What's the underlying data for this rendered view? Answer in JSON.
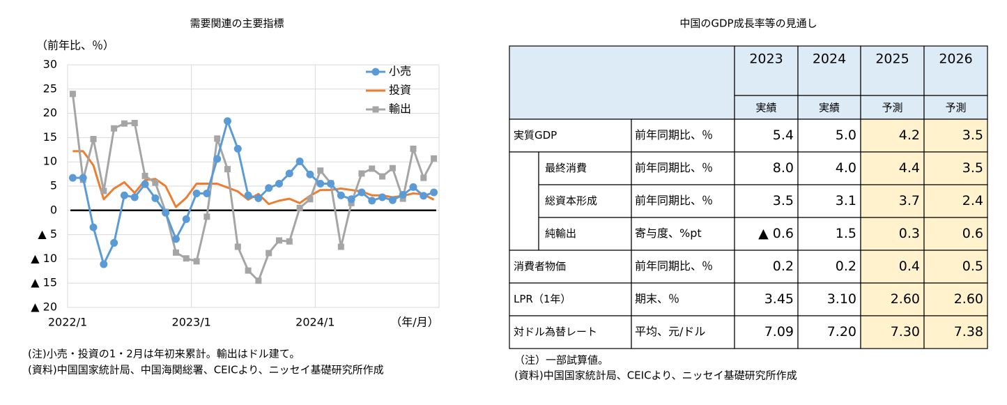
{
  "chart_data": {
    "type": "line",
    "title": "需要関連の主要指標",
    "y_label": "（前年比、％）",
    "x_label": "（年/月）",
    "categories": [
      "2022/1",
      null,
      null,
      null,
      null,
      null,
      null,
      null,
      null,
      null,
      null,
      null,
      "2023/1",
      null,
      null,
      null,
      null,
      null,
      null,
      null,
      null,
      null,
      null,
      null,
      "2024/1",
      null,
      null,
      null,
      null,
      null,
      null,
      null,
      null,
      null,
      null,
      null
    ],
    "series": [
      {
        "name": "小売",
        "color": "#5b9bd5",
        "marker": "circle",
        "values": [
          6.7,
          6.7,
          -3.5,
          -11.1,
          -6.7,
          3.1,
          2.7,
          5.4,
          2.5,
          -0.5,
          -5.9,
          -1.8,
          3.5,
          3.5,
          10.6,
          18.4,
          12.7,
          3.1,
          2.5,
          4.6,
          5.5,
          7.6,
          10.1,
          7.4,
          5.5,
          5.5,
          3.1,
          2.3,
          3.7,
          2.0,
          2.7,
          2.1,
          3.2,
          4.8,
          3.0,
          3.7
        ]
      },
      {
        "name": "投資",
        "color": "#ed7d31",
        "marker": "none",
        "values": [
          12.2,
          12.2,
          9.3,
          2.3,
          4.5,
          5.8,
          3.6,
          6.2,
          6.5,
          5.0,
          0.7,
          2.6,
          5.5,
          5.5,
          5.5,
          4.7,
          3.9,
          2.2,
          3.4,
          1.3,
          2.0,
          2.4,
          1.5,
          3.0,
          4.2,
          4.2,
          4.5,
          4.2,
          3.9,
          3.1,
          3.1,
          2.7,
          3.0,
          3.5,
          3.3,
          2.2
        ]
      },
      {
        "name": "輸出",
        "color": "#a5a5a5",
        "marker": "square",
        "values": [
          24.0,
          6.3,
          14.7,
          4.0,
          16.9,
          17.9,
          18.0,
          7.1,
          5.7,
          -0.3,
          -8.7,
          -9.9,
          -10.5,
          -1.3,
          14.8,
          8.5,
          -7.5,
          -12.4,
          -14.5,
          -8.8,
          -6.2,
          -6.4,
          0.5,
          2.3,
          8.2,
          5.6,
          -7.5,
          1.5,
          7.6,
          8.6,
          7.0,
          8.7,
          2.4,
          12.7,
          6.7,
          10.7
        ]
      }
    ],
    "ylim": [
      -20,
      30
    ],
    "yticks": [
      30,
      25,
      20,
      15,
      10,
      5,
      0,
      {
        "value": -5,
        "label": "▲ 5"
      },
      {
        "value": -10,
        "label": "▲ 10"
      },
      {
        "value": -15,
        "label": "▲ 15"
      },
      {
        "value": -20,
        "label": "▲ 20"
      }
    ],
    "grid": true,
    "legend": "upper right",
    "notes": [
      "(注)小売・投資の1・2月は年初来累計。輸出はドル建て。",
      "(資料)中国国家統計局、中国海関総署、CEICより、ニッセイ基礎研究所作成"
    ]
  },
  "table": {
    "title": "中国のGDP成長率等の見通し",
    "columns": [
      {
        "year": "2023",
        "kind": "実績"
      },
      {
        "year": "2024",
        "kind": "実績"
      },
      {
        "year": "2025",
        "kind": "予測"
      },
      {
        "year": "2026",
        "kind": "予測"
      }
    ],
    "rows": [
      {
        "label": "実質GDP",
        "unit": "前年同期比、％",
        "values": [
          "5.4",
          "5.0",
          "4.2",
          "3.5"
        ],
        "children": [
          {
            "label": "最終消費",
            "unit": "前年同期比、％",
            "values": [
              "8.0",
              "4.0",
              "4.4",
              "3.5"
            ]
          },
          {
            "label": "総資本形成",
            "unit": "前年同期比、％",
            "values": [
              "3.5",
              "3.1",
              "3.7",
              "2.4"
            ]
          },
          {
            "label": "純輸出",
            "unit": "寄与度、%pt",
            "values": [
              "▲ 0.6",
              "1.5",
              "0.3",
              "0.6"
            ]
          }
        ]
      },
      {
        "label": "消費者物価",
        "unit": "前年同期比、％",
        "values": [
          "0.2",
          "0.2",
          "0.4",
          "0.5"
        ]
      },
      {
        "label": "LPR（1年）",
        "unit": "期末、％",
        "values": [
          "3.45",
          "3.10",
          "2.60",
          "2.60"
        ]
      },
      {
        "label": "対ドル為替レート",
        "unit": "平均、元/ドル",
        "values": [
          "7.09",
          "7.20",
          "7.30",
          "7.38"
        ]
      }
    ],
    "notes": [
      "（注）一部試算値。",
      "(資料)中国国家統計局、CEICより、ニッセイ基礎研究所作成"
    ]
  }
}
